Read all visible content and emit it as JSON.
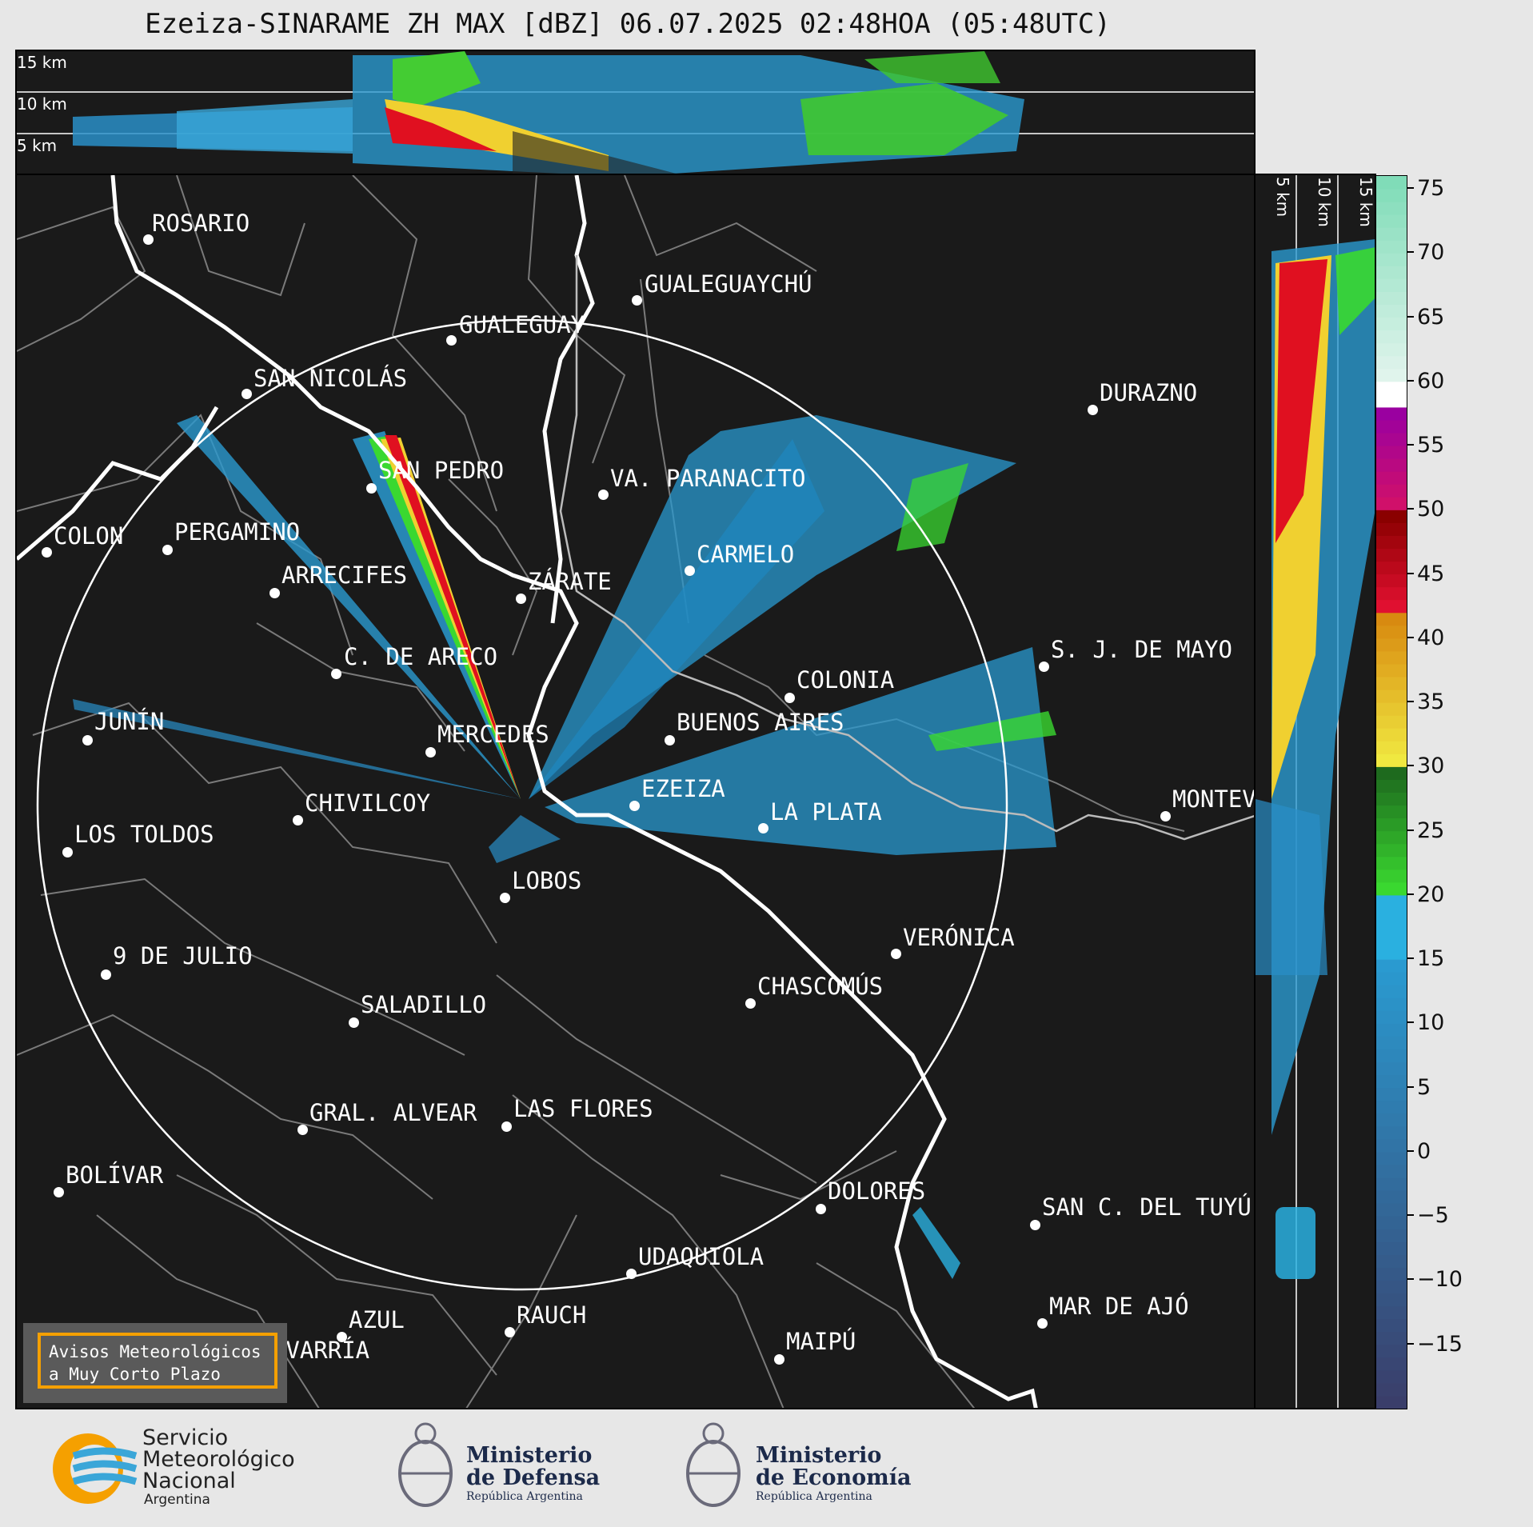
{
  "title": "Ezeiza-SINARAME ZH MAX [dBZ] 06.07.2025 02:48HOA (05:48UTC)",
  "altitude_labels": [
    "15 km",
    "10 km",
    "5 km"
  ],
  "cities": [
    {
      "name": "ROSARIO"
    },
    {
      "name": "GUALEGUAYCHÚ"
    },
    {
      "name": "GUALEGUAY"
    },
    {
      "name": "SAN NICOLÁS"
    },
    {
      "name": "DURAZNO"
    },
    {
      "name": "SAN PEDRO"
    },
    {
      "name": "VA. PARANACITO"
    },
    {
      "name": "COLON"
    },
    {
      "name": "PERGAMINO"
    },
    {
      "name": "CARMELO"
    },
    {
      "name": "ARRECIFES"
    },
    {
      "name": "ZÁRATE"
    },
    {
      "name": "S. J. DE MAYO"
    },
    {
      "name": "C. DE ARECO"
    },
    {
      "name": "COLONIA"
    },
    {
      "name": "JUNÍN"
    },
    {
      "name": "BUENOS AIRES"
    },
    {
      "name": "MERCEDES"
    },
    {
      "name": "EZEIZA"
    },
    {
      "name": "MONTEV"
    },
    {
      "name": "CHIVILCOY"
    },
    {
      "name": "LA PLATA"
    },
    {
      "name": "LOS TOLDOS"
    },
    {
      "name": "LOBOS"
    },
    {
      "name": "VERÓNICA"
    },
    {
      "name": "9 DE JULIO"
    },
    {
      "name": "CHASCOMÚS"
    },
    {
      "name": "SALADILLO"
    },
    {
      "name": "GRAL. ALVEAR"
    },
    {
      "name": "LAS FLORES"
    },
    {
      "name": "BOLÍVAR"
    },
    {
      "name": "DOLORES"
    },
    {
      "name": "SAN C. DEL TUYÚ"
    },
    {
      "name": "UDAQUIOLA"
    },
    {
      "name": "RAUCH"
    },
    {
      "name": "AZUL"
    },
    {
      "name": "MAR DE AJÓ"
    },
    {
      "name": "OLAVARRÍA"
    },
    {
      "name": "MAIPÚ"
    }
  ],
  "avisos": {
    "line1": "Avisos Meteorológicos",
    "line2": "a Muy Corto Plazo"
  },
  "colorbar": {
    "ticks": [
      "75",
      "70",
      "65",
      "60",
      "55",
      "50",
      "45",
      "40",
      "35",
      "30",
      "25",
      "20",
      "15",
      "10",
      "5",
      "0",
      "−5",
      "−10",
      "−15"
    ],
    "min": -20,
    "max": 76,
    "bands": [
      {
        "from": -20,
        "to": 15,
        "from_color": "#3a3e6a",
        "to_color": "#2a9ad0"
      },
      {
        "from": 15,
        "to": 20,
        "color": "#2ab0e0"
      },
      {
        "from": 20,
        "to": 30,
        "from_color": "#3ad830",
        "to_color": "#1e6a1e"
      },
      {
        "from": 30,
        "to": 42,
        "from_color": "#f0e840",
        "to_color": "#d88a10"
      },
      {
        "from": 42,
        "to": 50,
        "from_color": "#e01030",
        "to_color": "#8a0000"
      },
      {
        "from": 50,
        "to": 58,
        "from_color": "#d0106a",
        "to_color": "#9a00a0"
      },
      {
        "from": 58,
        "to": 60,
        "color": "#ffffff"
      },
      {
        "from": 60,
        "to": 76,
        "from_color": "#e0f4ec",
        "to_color": "#80dcb8"
      }
    ]
  },
  "colors": {
    "panel_bg": "#1a1a1a",
    "border_white": "#ffffff",
    "accent_orange": "#f5a000"
  },
  "footer": {
    "smn": {
      "line1": "Servicio",
      "line2": "Meteorológico",
      "line3": "Nacional",
      "line4": "Argentina"
    },
    "defensa": {
      "line1": "Ministerio",
      "line2": "de Defensa",
      "line3": "República Argentina"
    },
    "economia": {
      "line1": "Ministerio",
      "line2": "de Economía",
      "line3": "República Argentina"
    }
  }
}
